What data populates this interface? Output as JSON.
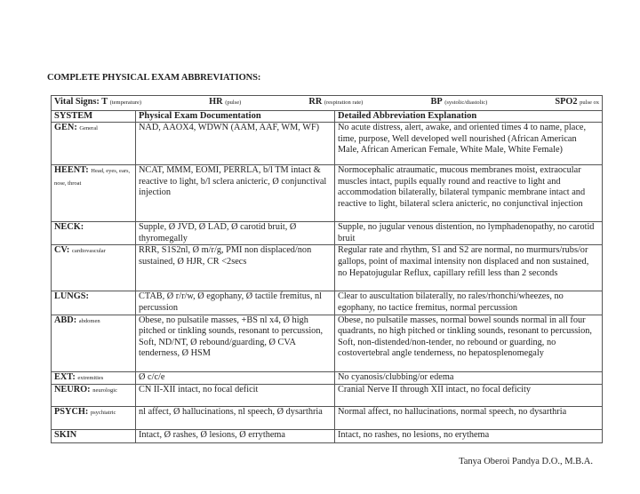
{
  "title": "COMPLETE PHYSICAL EXAM ABBREVIATIONS:",
  "vitals": [
    {
      "label": "Vital Signs: T",
      "note": "(temperature)"
    },
    {
      "label": "HR",
      "note": "(pulse)"
    },
    {
      "label": "RR",
      "note": "(respiration rate)"
    },
    {
      "label": "BP",
      "note": "(systolic/diastolic)"
    },
    {
      "label": "SPO2",
      "note": "pulse ox"
    }
  ],
  "headers": [
    "SYSTEM",
    "Physical Exam Documentation",
    "Detailed Abbreviation Explanation"
  ],
  "rows": [
    {
      "system": "GEN:",
      "note": "General",
      "doc": "NAD, AAOX4, WDWN (AAM, AAF, WM, WF)",
      "explain": "No acute distress, alert, awake, and oriented times 4 to name, place, time, purpose, Well developed well nourished (African American Male, African American Female, White Male, White Female)"
    },
    {
      "system": "HEENT:",
      "note": "Head, eyes, ears, nose, throat",
      "doc": "NCAT, MMM, EOMI, PERRLA, b/l TM intact & reactive to light, b/l sclera anicteric, Ø conjunctival injection",
      "explain": "Normocephalic atraumatic, mucous membranes moist, extraocular muscles intact, pupils equally round and reactive to light and accommodation bilaterally, bilateral tympanic membrane intact and reactive to light, bilateral sclera anicteric, no conjunctival injection"
    },
    {
      "system": "NECK:",
      "note": "",
      "doc": "Supple, Ø JVD, Ø LAD, Ø carotid bruit, Ø thyromegally",
      "explain": "Supple, no jugular venous distention, no lymphadenopathy, no carotid bruit"
    },
    {
      "system": "CV:",
      "note": "cardiovascular",
      "doc": "RRR, S1S2nl, Ø m/r/g, PMI non displaced/non sustained, Ø HJR, CR <2secs",
      "explain": "Regular rate and rhythm, S1 and S2 are normal, no murmurs/rubs/or gallops, point of maximal intensity non displaced and non sustained, no Hepatojugular Reflux, capillary refill less than 2 seconds"
    },
    {
      "system": "LUNGS:",
      "note": "",
      "doc": "CTAB, Ø r/r/w, Ø egophany, Ø tactile fremitus, nl percussion",
      "explain": "Clear to auscultation bilaterally, no rales/rhonchi/wheezes, no egophany, no tactice fremitus, normal percussion"
    },
    {
      "system": "ABD:",
      "note": "abdomen",
      "doc": "Obese, no pulsatile masses, +BS nl x4,  Ø high pitched or tinkling sounds, resonant to percussion, Soft, ND/NT, Ø rebound/guarding, Ø CVA tenderness, Ø HSM",
      "explain": "Obese, no pulsatile masses, normal bowel sounds normal in all four quadrants, no high pitched or tinkling sounds, resonant to percussion, Soft, non-distended/non-tender, no rebound or guarding, no costovertebral angle tenderness, no hepatosplenomegaly"
    },
    {
      "system": "EXT:",
      "note": "extremities",
      "doc": "Ø c/c/e",
      "explain": "No cyanosis/clubbing/or edema"
    },
    {
      "system": "NEURO:",
      "note": "neurologic",
      "doc": "CN II-XII intact, no focal deficit",
      "explain": "Cranial Nerve II through XII intact, no focal deficity"
    },
    {
      "system": "PSYCH:",
      "note": "psychiatric",
      "doc": "nl affect, Ø hallucinations, nl speech, Ø dysarthria",
      "explain": "Normal affect, no hallucinations, normal speech, no dysarthria"
    },
    {
      "system": "SKIN",
      "note": "",
      "doc": "Intact, Ø rashes, Ø lesions, Ø errythema",
      "explain": "Intact, no rashes, no lesions, no erythema"
    }
  ],
  "signature": "Tanya Oberoi Pandya D.O., M.B.A."
}
